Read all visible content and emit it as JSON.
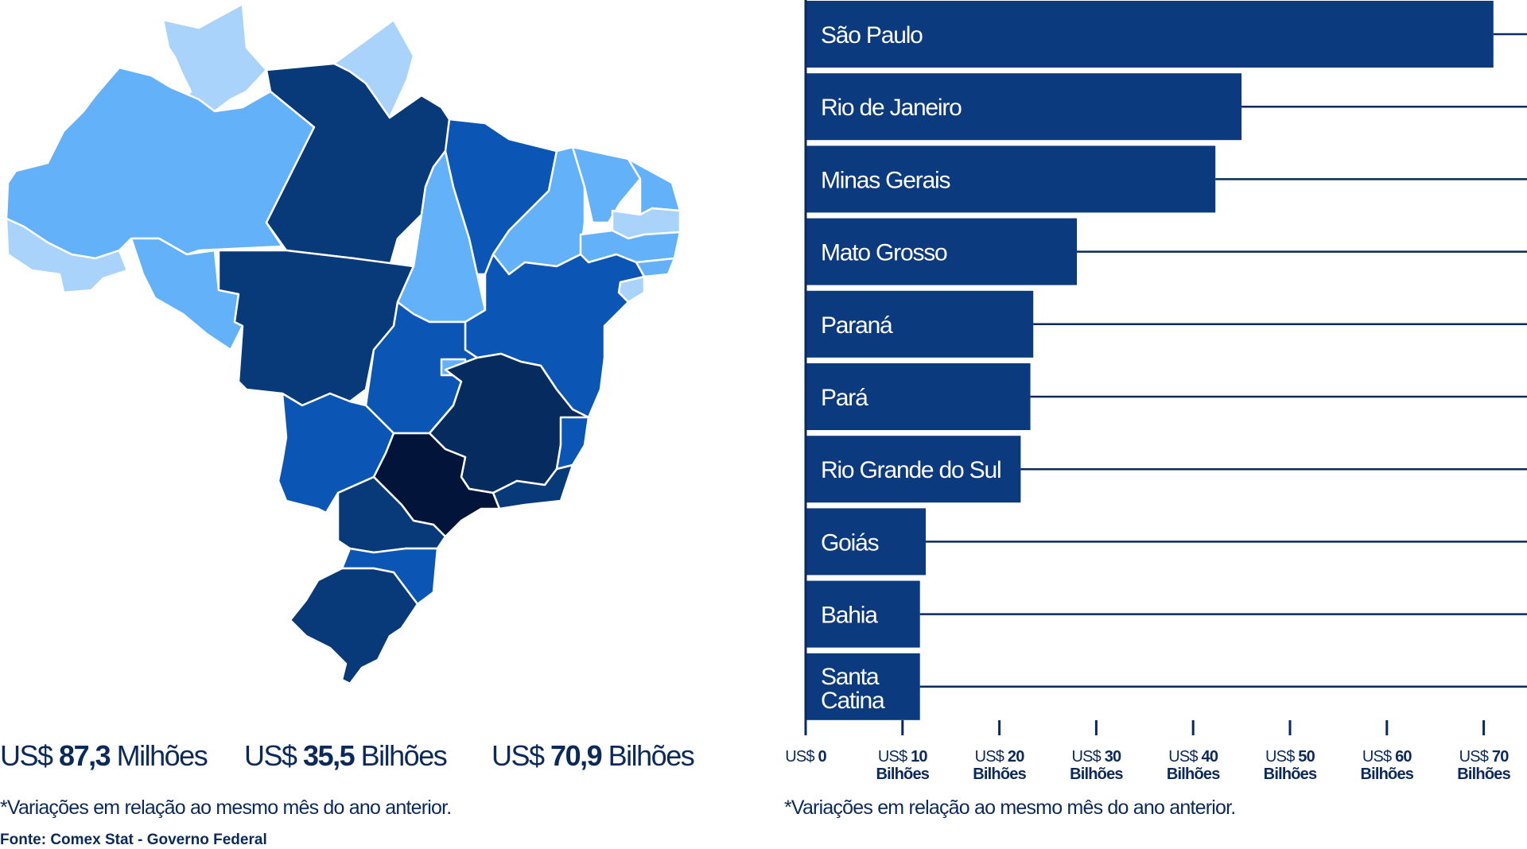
{
  "map": {
    "legend": {
      "min": {
        "currency": "US$",
        "value": "87,3",
        "unit": "Milhões"
      },
      "mid": {
        "currency": "US$",
        "value": "35,5",
        "unit": "Bilhões"
      },
      "max": {
        "currency": "US$",
        "value": "70,9",
        "unit": "Bilhões"
      },
      "colors": [
        "#a9d3fb",
        "#0077d4",
        "#0a3f8f",
        "#000b2a"
      ]
    }
  },
  "footnote_left": "*Variações em relação ao mesmo mês do ano anterior.",
  "footnote_right": "*Variações em relação ao mesmo mês do ano anterior.",
  "source": "Fonte: Comex Stat - Governo Federal",
  "colors": {
    "bar": "#0b3a7e",
    "axis": "#0b2a5b",
    "light": "#a9d3fb",
    "medium_light": "#63b1f8",
    "medium": "#0b55b5",
    "dark": "#083a7a",
    "darker": "#062c5f",
    "darkest": "#02143a"
  },
  "chart_data": {
    "type": "bar",
    "orientation": "horizontal",
    "categories": [
      "São Paulo",
      "Rio de Janeiro",
      "Minas Gerais",
      "Mato Grosso",
      "Paraná",
      "Pará",
      "Rio Grande do Sul",
      "Goiás",
      "Bahia",
      "Santa Catina"
    ],
    "values": [
      71.0,
      45.0,
      42.3,
      28.0,
      23.5,
      23.2,
      22.2,
      12.4,
      11.8,
      11.8
    ],
    "xlim": [
      0,
      75
    ],
    "ticks": [
      {
        "value": 0,
        "line1": "US$ 0",
        "line2": ""
      },
      {
        "value": 10,
        "line1": "US$ 10",
        "line2": "Bilhões"
      },
      {
        "value": 20,
        "line1": "US$ 20",
        "line2": "Bilhões"
      },
      {
        "value": 30,
        "line1": "US$ 30",
        "line2": "Bilhões"
      },
      {
        "value": 40,
        "line1": "US$ 40",
        "line2": "Bilhões"
      },
      {
        "value": 50,
        "line1": "US$ 50",
        "line2": "Bilhões"
      },
      {
        "value": 60,
        "line1": "US$ 60",
        "line2": "Bilhões"
      },
      {
        "value": 70,
        "line1": "US$ 70",
        "line2": "Bilhões"
      }
    ]
  }
}
